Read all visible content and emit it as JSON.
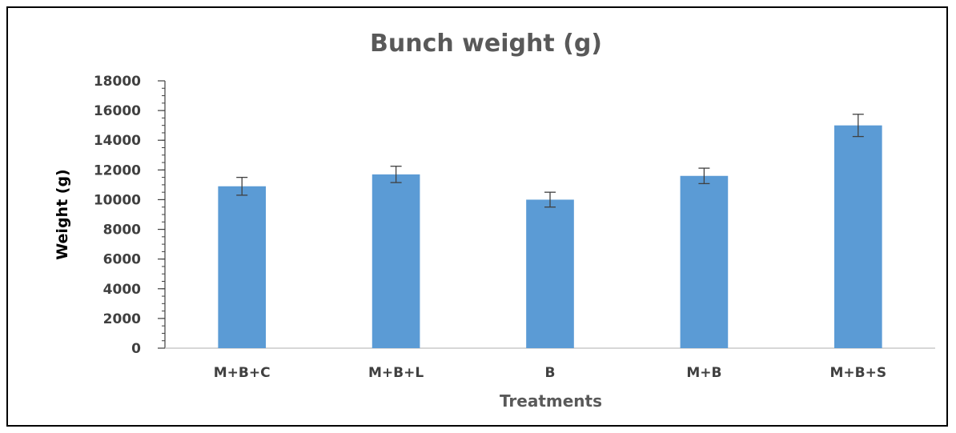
{
  "chart_data": {
    "type": "bar",
    "title": "Bunch weight (g)",
    "xlabel": "Treatments",
    "ylabel": "Weight (g)",
    "categories": [
      "M+B+C",
      "M+B+L",
      "B",
      "M+B",
      "M+B+S"
    ],
    "values": [
      10900,
      11700,
      10000,
      11600,
      15000
    ],
    "error": [
      600,
      550,
      500,
      520,
      750
    ],
    "ylim": [
      0,
      18000
    ],
    "yticks": [
      0,
      2000,
      4000,
      6000,
      8000,
      10000,
      12000,
      14000,
      16000,
      18000
    ],
    "grid": false,
    "legend": "none",
    "colors": {
      "bar": "#5B9BD5",
      "axis": "#404040",
      "error_bar": "#404040"
    }
  }
}
